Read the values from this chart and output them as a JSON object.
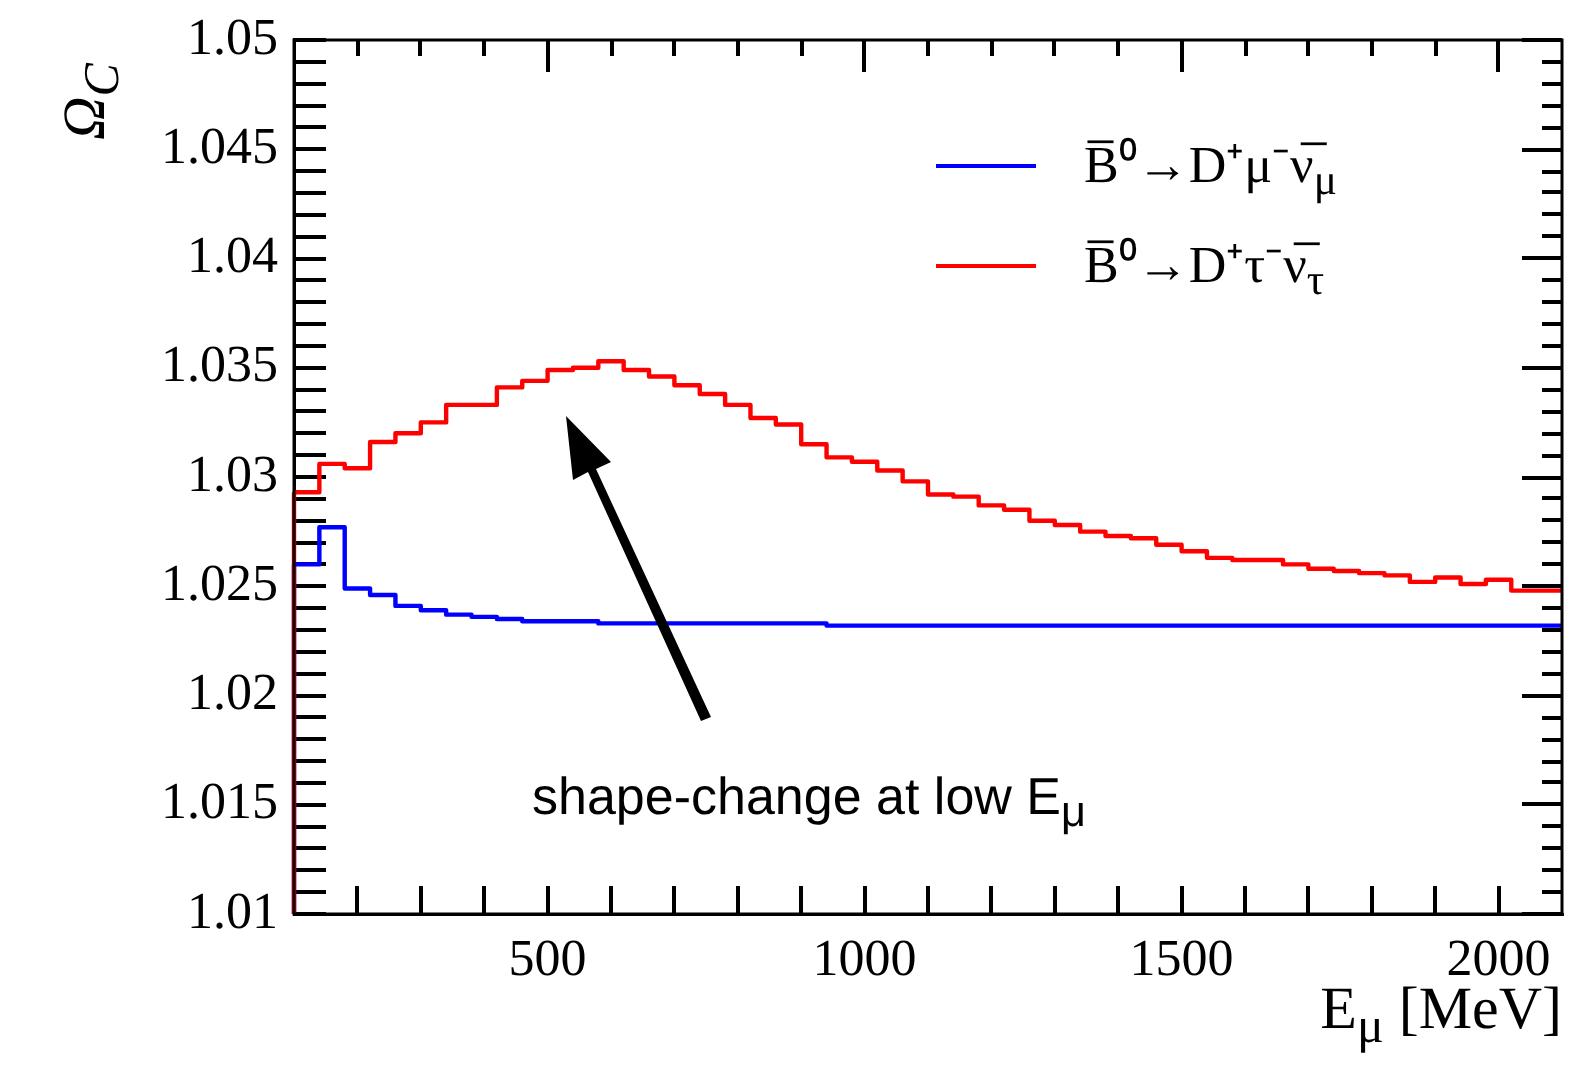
{
  "chart_data": {
    "type": "histogram",
    "ylabel": "Ω$_{C}$",
    "xlabel": "E$_{μ}$ [MeV]",
    "annotations": [
      "shape-change at low E$_{μ}$"
    ],
    "bins": [
      100,
      140,
      180,
      220,
      260,
      300,
      340,
      380,
      420,
      460,
      500,
      540,
      580,
      620,
      660,
      700,
      740,
      780,
      820,
      860,
      900,
      940,
      980,
      1020,
      1060,
      1100,
      1140,
      1180,
      1220,
      1260,
      1300,
      1340,
      1380,
      1420,
      1460,
      1500,
      1540,
      1580,
      1620,
      1660,
      1700,
      1740,
      1780,
      1820,
      1860,
      1900,
      1940,
      1980,
      2020,
      2060,
      2100
    ],
    "series": [
      {
        "name": "B̅⁰→D⁺μ⁻ν̅$_{μ}$",
        "color": "#0000ff",
        "values": [
          1.026,
          1.0277,
          1.0249,
          1.0246,
          1.0241,
          1.0239,
          1.0237,
          1.0236,
          1.0235,
          1.0234,
          1.0234,
          1.0234,
          1.0233,
          1.0233,
          1.0233,
          1.0233,
          1.0233,
          1.0233,
          1.0233,
          1.0233,
          1.0233,
          1.0232,
          1.0232,
          1.0232,
          1.0232,
          1.0232,
          1.0232,
          1.0232,
          1.0232,
          1.0232,
          1.0232,
          1.0232,
          1.0232,
          1.0232,
          1.0232,
          1.0232,
          1.0232,
          1.0232,
          1.0232,
          1.0232,
          1.0232,
          1.0232,
          1.0232,
          1.0232,
          1.0232,
          1.0232,
          1.0232,
          1.0232,
          1.0232,
          1.0232
        ]
      },
      {
        "name": "B̅⁰→D⁺τ⁻ν̅$_{τ}$",
        "color": "#ff0000",
        "values": [
          1.0293,
          1.0306,
          1.0304,
          1.0316,
          1.032,
          1.0325,
          1.0333,
          1.0333,
          1.0341,
          1.0344,
          1.0349,
          1.035,
          1.0353,
          1.0349,
          1.0346,
          1.0342,
          1.0338,
          1.0333,
          1.0327,
          1.0324,
          1.0315,
          1.0309,
          1.0307,
          1.0303,
          1.0298,
          1.0292,
          1.0291,
          1.0287,
          1.0285,
          1.028,
          1.0278,
          1.0275,
          1.0273,
          1.0272,
          1.0269,
          1.0266,
          1.0263,
          1.0262,
          1.0262,
          1.026,
          1.0258,
          1.0257,
          1.0256,
          1.0255,
          1.0252,
          1.0254,
          1.0251,
          1.0253,
          1.0248,
          1.0248
        ]
      }
    ],
    "xlim": [
      100,
      2100
    ],
    "xticks": [
      {
        "value": 200,
        "label": null
      },
      {
        "value": 300,
        "label": null
      },
      {
        "value": 400,
        "label": null
      },
      500,
      {
        "value": 600,
        "label": null
      },
      {
        "value": 700,
        "label": null
      },
      {
        "value": 800,
        "label": null
      },
      {
        "value": 900,
        "label": null
      },
      1000,
      {
        "value": 1100,
        "label": null
      },
      {
        "value": 1200,
        "label": null
      },
      {
        "value": 1300,
        "label": null
      },
      {
        "value": 1400,
        "label": null
      },
      1500,
      {
        "value": 1600,
        "label": null
      },
      {
        "value": 1700,
        "label": null
      },
      {
        "value": 1800,
        "label": null
      },
      {
        "value": 1900,
        "label": null
      },
      2000
    ],
    "ylim": [
      1.01,
      1.05
    ],
    "yticks": [
      1.01,
      {
        "value": 1.011,
        "label": null
      },
      {
        "value": 1.012,
        "label": null
      },
      {
        "value": 1.013,
        "label": null
      },
      {
        "value": 1.014,
        "label": null
      },
      1.015,
      {
        "value": 1.016,
        "label": null
      },
      {
        "value": 1.017,
        "label": null
      },
      {
        "value": 1.018,
        "label": null
      },
      {
        "value": 1.019,
        "label": null
      },
      1.02,
      {
        "value": 1.021,
        "label": null
      },
      {
        "value": 1.022,
        "label": null
      },
      {
        "value": 1.023,
        "label": null
      },
      {
        "value": 1.024,
        "label": null
      },
      1.025,
      {
        "value": 1.026,
        "label": null
      },
      {
        "value": 1.027,
        "label": null
      },
      {
        "value": 1.028,
        "label": null
      },
      {
        "value": 1.029,
        "label": null
      },
      1.03,
      {
        "value": 1.031,
        "label": null
      },
      {
        "value": 1.032,
        "label": null
      },
      {
        "value": 1.033,
        "label": null
      },
      {
        "value": 1.034,
        "label": null
      },
      1.035,
      {
        "value": 1.036,
        "label": null
      },
      {
        "value": 1.037,
        "label": null
      },
      {
        "value": 1.038,
        "label": null
      },
      {
        "value": 1.039,
        "label": null
      },
      1.04,
      {
        "value": 1.041,
        "label": null
      },
      {
        "value": 1.042,
        "label": null
      },
      {
        "value": 1.043,
        "label": null
      },
      {
        "value": 1.044,
        "label": null
      },
      1.045,
      {
        "value": 1.046,
        "label": null
      },
      {
        "value": 1.047,
        "label": null
      },
      {
        "value": 1.048,
        "label": null
      },
      {
        "value": 1.049,
        "label": null
      },
      1.05
    ],
    "legend": "top right"
  }
}
